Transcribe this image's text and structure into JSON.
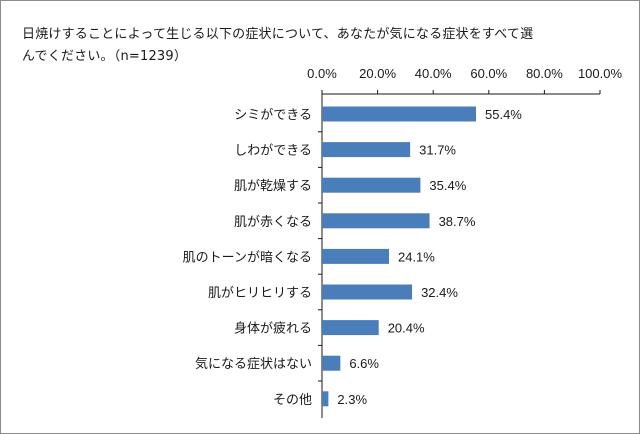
{
  "chart_data": {
    "type": "bar",
    "orientation": "horizontal",
    "title_line1": "日焼けすることによって生じる以下の症状について、あなたが気になる症状をすべて選",
    "title_line2": "んでください。（n=1239）",
    "categories": [
      "シミができる",
      "しわができる",
      "肌が乾燥する",
      "肌が赤くなる",
      "肌のトーンが暗くなる",
      "肌がヒリヒリする",
      "身体が疲れる",
      "気になる症状はない",
      "その他"
    ],
    "values": [
      55.4,
      31.7,
      35.4,
      38.7,
      24.1,
      32.4,
      20.4,
      6.6,
      2.3
    ],
    "value_labels": [
      "55.4%",
      "31.7%",
      "35.4%",
      "38.7%",
      "24.1%",
      "32.4%",
      "20.4%",
      "6.6%",
      "2.3%"
    ],
    "xlim": [
      0,
      100
    ],
    "xticks": [
      0,
      20,
      40,
      60,
      80,
      100
    ],
    "xtick_labels": [
      "0.0%",
      "20.0%",
      "40.0%",
      "60.0%",
      "80.0%",
      "100.0%"
    ],
    "axis_position": "top",
    "grid": false,
    "bar_color": "#4a7ebb"
  }
}
